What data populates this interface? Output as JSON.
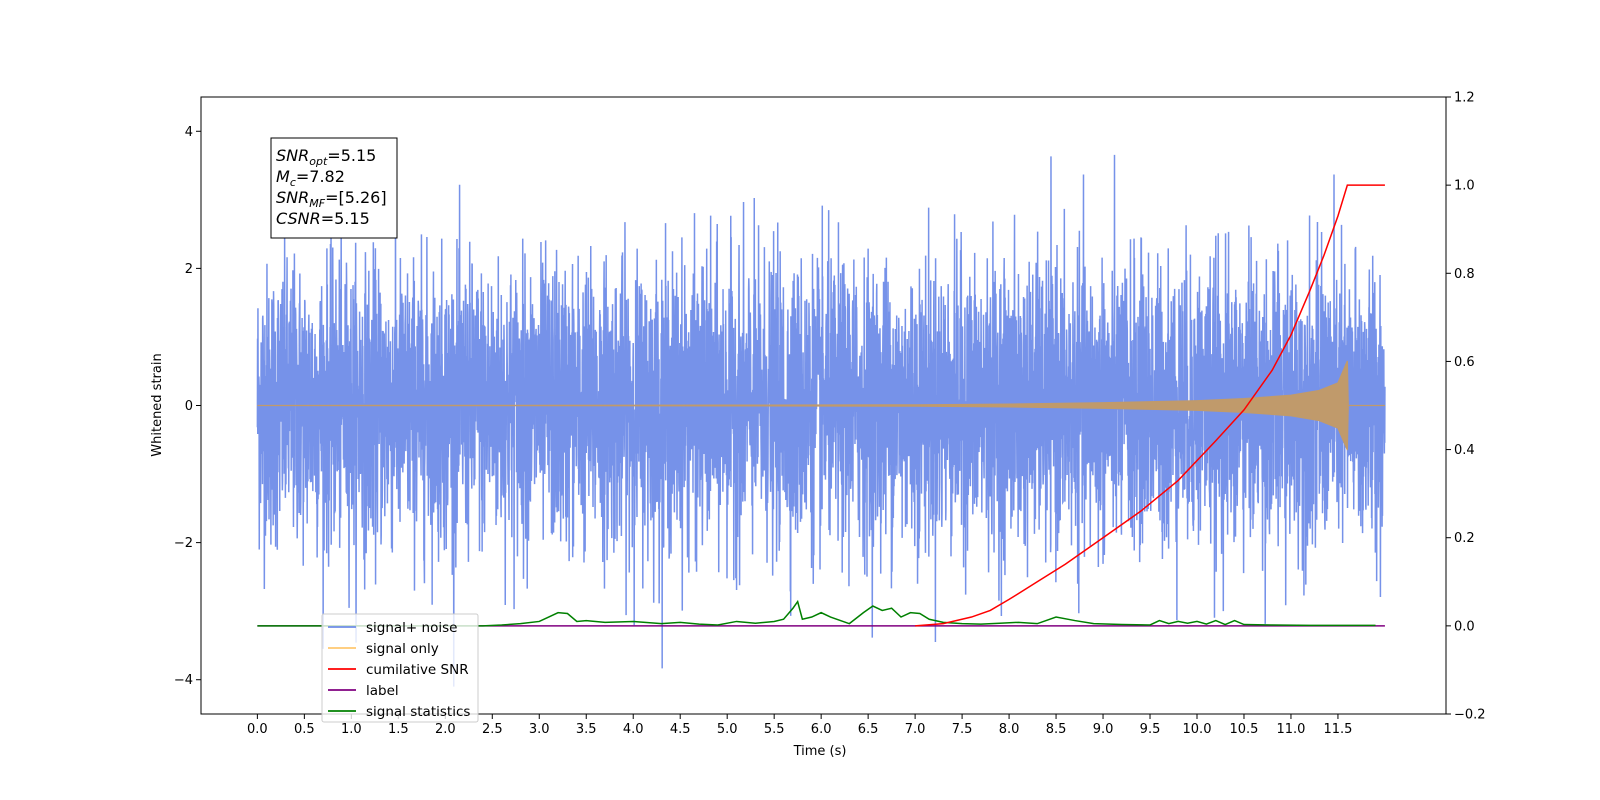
{
  "chart_data": {
    "type": "line",
    "xlabel": "Time (s)",
    "ylabel": "Whitened strain",
    "xlim": [
      -0.6,
      12.65
    ],
    "ylim": [
      -4.5,
      4.5
    ],
    "y2lim": [
      -0.2,
      1.2
    ],
    "x_ticks": [
      0.0,
      0.5,
      1.0,
      1.5,
      2.0,
      2.5,
      3.0,
      3.5,
      4.0,
      4.5,
      5.0,
      5.5,
      6.0,
      6.5,
      7.0,
      7.5,
      8.0,
      8.5,
      9.0,
      9.5,
      10.0,
      10.5,
      11.0,
      11.5
    ],
    "x_tick_labels": [
      "0.0",
      "0.5",
      "1.0",
      "1.5",
      "2.0",
      "2.5",
      "3.0",
      "3.5",
      "4.0",
      "4.5",
      "5.0",
      "5.5",
      "6.0",
      "6.5",
      "7.0",
      "7.5",
      "8.0",
      "8.5",
      "9.0",
      "9.5",
      "10.0",
      "10.5",
      "11.0",
      "11.5"
    ],
    "y_ticks": [
      -4,
      -2,
      0,
      2,
      4
    ],
    "y_tick_labels": [
      "−4",
      "−2",
      "0",
      "2",
      "4"
    ],
    "y2_ticks": [
      -0.2,
      0.0,
      0.2,
      0.4,
      0.6,
      0.8,
      1.0,
      1.2
    ],
    "y2_tick_labels": [
      "−0.2",
      "0.0",
      "0.2",
      "0.4",
      "0.6",
      "0.8",
      "1.0",
      "1.2"
    ],
    "legend_position": "lower-left",
    "grid": false,
    "colors": {
      "noise": "#6f8ce8",
      "signal": "#c09a6b",
      "signal_legend": "#ffc870",
      "csnr": "#ff0000",
      "label": "#800080",
      "stats": "#008000"
    },
    "series": [
      {
        "name": "signal+ noise",
        "axis": "left",
        "x_range": [
          0.0,
          12.0
        ],
        "envelope_upper_typical": [
          1.8,
          2.5
        ],
        "envelope_lower_typical": [
          -1.8,
          -2.5
        ],
        "peak_max": 4.1,
        "peak_min": -4.1
      },
      {
        "name": "signal only",
        "axis": "left",
        "x": [
          0.0,
          5.0,
          7.0,
          8.0,
          9.0,
          10.0,
          10.5,
          11.0,
          11.3,
          11.5,
          11.6,
          11.61,
          12.0
        ],
        "amplitude": [
          0.0,
          0.005,
          0.01,
          0.02,
          0.04,
          0.07,
          0.1,
          0.15,
          0.22,
          0.33,
          0.65,
          0.0,
          0.0
        ]
      },
      {
        "name": "cumilative SNR",
        "axis": "right",
        "x": [
          7.0,
          7.3,
          7.6,
          7.8,
          8.0,
          8.3,
          8.6,
          9.0,
          9.4,
          9.8,
          10.2,
          10.5,
          10.8,
          11.0,
          11.2,
          11.35,
          11.5,
          11.6,
          11.61,
          11.6,
          12.0
        ],
        "y": [
          0.0,
          0.005,
          0.02,
          0.035,
          0.06,
          0.1,
          0.14,
          0.2,
          0.26,
          0.33,
          0.42,
          0.49,
          0.58,
          0.66,
          0.76,
          0.84,
          0.93,
          1.0,
          1.0,
          1.0,
          1.0
        ]
      },
      {
        "name": "label",
        "axis": "right",
        "x": [
          0.0,
          11.0,
          11.6,
          12.0
        ],
        "y": [
          0.0,
          0.0,
          0.0,
          0.0
        ]
      },
      {
        "name": "signal statistics",
        "axis": "right",
        "x": [
          0.0,
          2.4,
          2.6,
          2.8,
          3.0,
          3.1,
          3.2,
          3.3,
          3.4,
          3.5,
          3.7,
          4.0,
          4.3,
          4.5,
          4.7,
          4.9,
          5.1,
          5.3,
          5.5,
          5.6,
          5.7,
          5.75,
          5.8,
          5.9,
          6.0,
          6.1,
          6.3,
          6.45,
          6.55,
          6.65,
          6.75,
          6.85,
          6.95,
          7.05,
          7.15,
          7.3,
          7.5,
          7.7,
          7.9,
          8.1,
          8.3,
          8.5,
          8.7,
          8.9,
          9.2,
          9.5,
          9.6,
          9.7,
          9.8,
          9.9,
          10.0,
          10.1,
          10.2,
          10.3,
          10.4,
          10.5,
          10.8,
          11.2,
          11.5,
          11.9
        ],
        "y": [
          0.0,
          0.0,
          0.002,
          0.005,
          0.01,
          0.02,
          0.03,
          0.028,
          0.01,
          0.012,
          0.008,
          0.01,
          0.005,
          0.008,
          0.004,
          0.002,
          0.01,
          0.006,
          0.01,
          0.015,
          0.04,
          0.055,
          0.015,
          0.02,
          0.03,
          0.02,
          0.005,
          0.03,
          0.045,
          0.035,
          0.04,
          0.02,
          0.03,
          0.028,
          0.015,
          0.008,
          0.005,
          0.004,
          0.006,
          0.008,
          0.005,
          0.02,
          0.012,
          0.005,
          0.003,
          0.002,
          0.012,
          0.005,
          0.01,
          0.006,
          0.01,
          0.004,
          0.012,
          0.003,
          0.012,
          0.003,
          0.002,
          0.001,
          0.001,
          0.001
        ]
      }
    ],
    "annotation": {
      "lines": [
        {
          "label": "SNR",
          "sub": "opt",
          "value": "=5.15"
        },
        {
          "label": "M",
          "sub": "c",
          "value": "=7.82"
        },
        {
          "label": "SNR",
          "sub": "MF",
          "value": "=[5.26]"
        },
        {
          "label": "CSNR",
          "sub": "",
          "value": "=5.15"
        }
      ]
    },
    "legend": [
      "signal+ noise",
      "signal only",
      "cumilative SNR",
      "label",
      "signal statistics"
    ]
  }
}
